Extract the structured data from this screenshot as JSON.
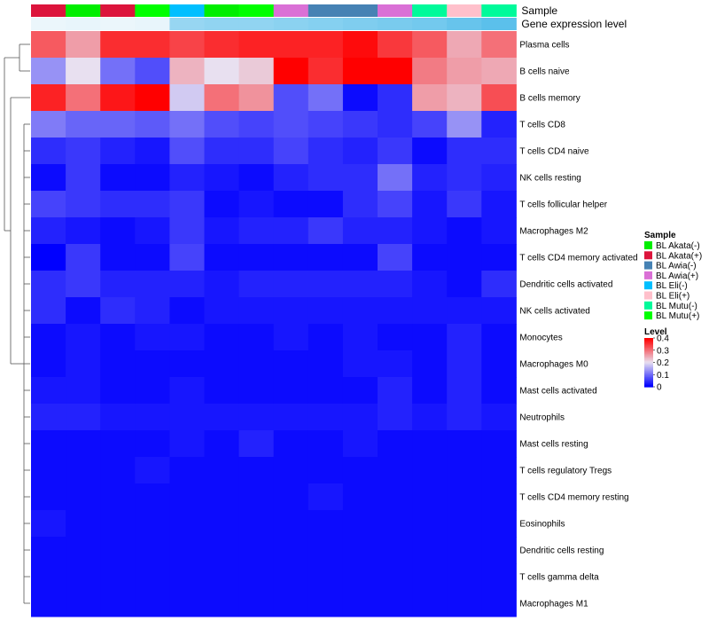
{
  "chart_data": {
    "type": "heatmap",
    "title": "",
    "annotation_rows": [
      "Sample",
      "Gene expression level"
    ],
    "columns": [
      {
        "sample": "BL Akata(+)",
        "gene_level": 0.02
      },
      {
        "sample": "BL Akata(-)",
        "gene_level": 0.03
      },
      {
        "sample": "BL Akata(+)",
        "gene_level": 0.02
      },
      {
        "sample": "BL Mutu(+)",
        "gene_level": 0.03
      },
      {
        "sample": "BL Eli(-)",
        "gene_level": 0.3
      },
      {
        "sample": "BL Akata(-)",
        "gene_level": 0.32
      },
      {
        "sample": "BL Mutu(+)",
        "gene_level": 0.32
      },
      {
        "sample": "BL Awia(+)",
        "gene_level": 0.34
      },
      {
        "sample": "BL Awia(-)",
        "gene_level": 0.36
      },
      {
        "sample": "BL Awia(-)",
        "gene_level": 0.38
      },
      {
        "sample": "BL Awia(+)",
        "gene_level": 0.4
      },
      {
        "sample": "BL Mutu(-)",
        "gene_level": 0.42
      },
      {
        "sample": "BL Eli(+)",
        "gene_level": 0.46
      },
      {
        "sample": "BL Mutu(-)",
        "gene_level": 0.5
      }
    ],
    "rows": [
      {
        "label": "Plasma cells",
        "values": [
          0.32,
          0.26,
          0.36,
          0.36,
          0.34,
          0.36,
          0.37,
          0.37,
          0.37,
          0.39,
          0.35,
          0.32,
          0.25,
          0.3
        ]
      },
      {
        "label": "B cells naive",
        "values": [
          0.13,
          0.2,
          0.1,
          0.07,
          0.24,
          0.2,
          0.22,
          0.4,
          0.36,
          0.4,
          0.4,
          0.29,
          0.26,
          0.25
        ]
      },
      {
        "label": "B cells memory",
        "values": [
          0.37,
          0.3,
          0.38,
          0.4,
          0.18,
          0.3,
          0.27,
          0.07,
          0.1,
          0.01,
          0.04,
          0.26,
          0.24,
          0.33
        ]
      },
      {
        "label": "T cells CD8",
        "values": [
          0.11,
          0.09,
          0.09,
          0.08,
          0.1,
          0.07,
          0.06,
          0.07,
          0.06,
          0.05,
          0.04,
          0.06,
          0.13,
          0.03
        ]
      },
      {
        "label": "T cells CD4 naive",
        "values": [
          0.04,
          0.05,
          0.03,
          0.02,
          0.07,
          0.04,
          0.04,
          0.06,
          0.04,
          0.03,
          0.05,
          0.01,
          0.04,
          0.04
        ]
      },
      {
        "label": "NK cells resting",
        "values": [
          0.01,
          0.05,
          0.01,
          0.01,
          0.03,
          0.02,
          0.01,
          0.03,
          0.04,
          0.04,
          0.1,
          0.03,
          0.04,
          0.03
        ]
      },
      {
        "label": "T cells follicular helper",
        "values": [
          0.06,
          0.05,
          0.04,
          0.04,
          0.05,
          0.01,
          0.02,
          0.01,
          0.01,
          0.04,
          0.06,
          0.02,
          0.05,
          0.02
        ]
      },
      {
        "label": "Macrophages M2",
        "values": [
          0.03,
          0.02,
          0.01,
          0.02,
          0.05,
          0.02,
          0.03,
          0.03,
          0.05,
          0.03,
          0.03,
          0.02,
          0.01,
          0.02
        ]
      },
      {
        "label": "T cells CD4 memory activated",
        "values": [
          0.0,
          0.05,
          0.01,
          0.01,
          0.06,
          0.01,
          0.01,
          0.01,
          0.01,
          0.01,
          0.06,
          0.01,
          0.01,
          0.01
        ]
      },
      {
        "label": "Dendritic cells activated",
        "values": [
          0.04,
          0.05,
          0.03,
          0.03,
          0.03,
          0.02,
          0.03,
          0.03,
          0.03,
          0.03,
          0.03,
          0.02,
          0.01,
          0.04
        ]
      },
      {
        "label": "NK cells activated",
        "values": [
          0.04,
          0.01,
          0.04,
          0.03,
          0.01,
          0.02,
          0.02,
          0.02,
          0.02,
          0.02,
          0.02,
          0.02,
          0.02,
          0.02
        ]
      },
      {
        "label": "Monocytes",
        "values": [
          0.01,
          0.02,
          0.01,
          0.02,
          0.02,
          0.01,
          0.01,
          0.02,
          0.01,
          0.02,
          0.01,
          0.01,
          0.03,
          0.01
        ]
      },
      {
        "label": "Macrophages M0",
        "values": [
          0.01,
          0.02,
          0.01,
          0.01,
          0.01,
          0.01,
          0.01,
          0.01,
          0.01,
          0.02,
          0.02,
          0.01,
          0.03,
          0.01
        ]
      },
      {
        "label": "Mast cells activated",
        "values": [
          0.02,
          0.02,
          0.01,
          0.01,
          0.02,
          0.01,
          0.01,
          0.01,
          0.01,
          0.01,
          0.03,
          0.01,
          0.03,
          0.01
        ]
      },
      {
        "label": "Neutrophils",
        "values": [
          0.03,
          0.03,
          0.02,
          0.02,
          0.02,
          0.02,
          0.02,
          0.02,
          0.02,
          0.02,
          0.03,
          0.02,
          0.03,
          0.02
        ]
      },
      {
        "label": "Mast cells resting",
        "values": [
          0.01,
          0.01,
          0.01,
          0.01,
          0.02,
          0.01,
          0.03,
          0.01,
          0.01,
          0.02,
          0.01,
          0.01,
          0.01,
          0.01
        ]
      },
      {
        "label": "T cells regulatory  Tregs",
        "values": [
          0.01,
          0.01,
          0.01,
          0.02,
          0.01,
          0.01,
          0.01,
          0.01,
          0.01,
          0.01,
          0.01,
          0.01,
          0.01,
          0.01
        ]
      },
      {
        "label": "T cells CD4 memory resting",
        "values": [
          0.01,
          0.01,
          0.01,
          0.01,
          0.01,
          0.01,
          0.01,
          0.01,
          0.02,
          0.01,
          0.01,
          0.01,
          0.01,
          0.01
        ]
      },
      {
        "label": "Eosinophils",
        "values": [
          0.02,
          0.01,
          0.01,
          0.01,
          0.01,
          0.01,
          0.01,
          0.01,
          0.01,
          0.01,
          0.01,
          0.01,
          0.01,
          0.01
        ]
      },
      {
        "label": "Dendritic cells resting",
        "values": [
          0.01,
          0.01,
          0.01,
          0.01,
          0.01,
          0.01,
          0.01,
          0.01,
          0.01,
          0.01,
          0.01,
          0.01,
          0.01,
          0.01
        ]
      },
      {
        "label": "T cells gamma delta",
        "values": [
          0.01,
          0.01,
          0.01,
          0.01,
          0.01,
          0.01,
          0.01,
          0.01,
          0.01,
          0.01,
          0.01,
          0.01,
          0.01,
          0.01
        ]
      },
      {
        "label": "Macrophages M1",
        "values": [
          0.01,
          0.01,
          0.01,
          0.01,
          0.01,
          0.01,
          0.01,
          0.01,
          0.01,
          0.01,
          0.01,
          0.01,
          0.01,
          0.01
        ]
      }
    ],
    "sample_legend": {
      "title": "Sample",
      "entries": [
        {
          "label": "BL Akata(-)",
          "color": "#00ee00"
        },
        {
          "label": "BL Akata(+)",
          "color": "#dc143c"
        },
        {
          "label": "BL Awia(-)",
          "color": "#4682b4"
        },
        {
          "label": "BL Awia(+)",
          "color": "#da70d6"
        },
        {
          "label": "BL Eli(-)",
          "color": "#00bfff"
        },
        {
          "label": "BL Eli(+)",
          "color": "#ffc0cb"
        },
        {
          "label": "BL Mutu(-)",
          "color": "#00fa9a"
        },
        {
          "label": "BL Mutu(+)",
          "color": "#00ff00"
        }
      ]
    },
    "level_legend": {
      "title": "Level",
      "ticks": [
        0.4,
        0.3,
        0.2,
        0.1,
        0
      ],
      "tick_labels": [
        "0.4",
        "0.3",
        "0.2",
        "0.1",
        "0"
      ],
      "range": [
        0,
        0.4
      ]
    },
    "color_scale": {
      "low": "#0000ff",
      "mid": "#e8e0f0",
      "high": "#ff0000",
      "midpoint": 0.2
    },
    "gene_level_colors": {
      "low": "#f1f8fc",
      "high": "#5bc0eb"
    },
    "row_dendrogram": true
  }
}
